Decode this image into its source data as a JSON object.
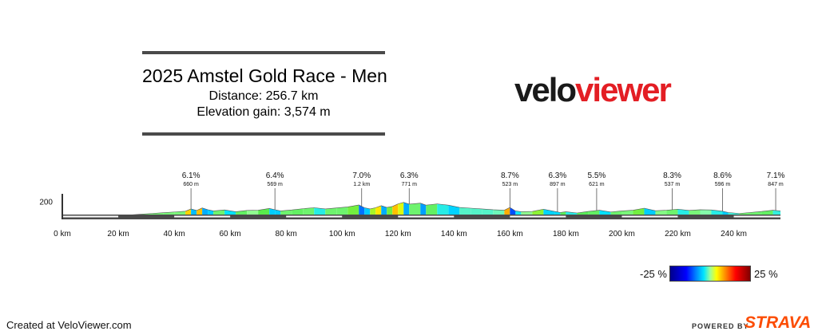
{
  "header": {
    "title": "2025 Amstel Gold Race - Men",
    "distance": "Distance: 256.7 km",
    "elevation": "Elevation gain: 3,574 m"
  },
  "brand": {
    "velo": "velo",
    "viewer": "viewer",
    "velo_color": "#1a1a1a",
    "viewer_color": "#e31e24"
  },
  "chart_data": {
    "type": "area",
    "x_unit": "km",
    "xlim": [
      0,
      256.7
    ],
    "xticks": [
      0,
      20,
      40,
      60,
      80,
      100,
      120,
      140,
      160,
      180,
      200,
      220,
      240
    ],
    "xtick_labels": [
      "0 km",
      "20 km",
      "40 km",
      "60 km",
      "80 km",
      "100 km",
      "120 km",
      "140 km",
      "160 km",
      "180 km",
      "200 km",
      "220 km",
      "240 km"
    ],
    "ylim": [
      70,
      260
    ],
    "yticks": [
      200
    ],
    "ytick_labels": [
      "200"
    ],
    "profile": [
      [
        0,
        80
      ],
      [
        4,
        78
      ],
      [
        10,
        80
      ],
      [
        14,
        88
      ],
      [
        18,
        86
      ],
      [
        24,
        92
      ],
      [
        28,
        98
      ],
      [
        32,
        104
      ],
      [
        36,
        110
      ],
      [
        40,
        116
      ],
      [
        44,
        122
      ],
      [
        46,
        140
      ],
      [
        48,
        128
      ],
      [
        50,
        148
      ],
      [
        52,
        134
      ],
      [
        54,
        124
      ],
      [
        58,
        132
      ],
      [
        62,
        118
      ],
      [
        66,
        128
      ],
      [
        70,
        130
      ],
      [
        74,
        144
      ],
      [
        76,
        134
      ],
      [
        78,
        124
      ],
      [
        82,
        132
      ],
      [
        86,
        142
      ],
      [
        90,
        150
      ],
      [
        94,
        140
      ],
      [
        98,
        148
      ],
      [
        102,
        156
      ],
      [
        106,
        172
      ],
      [
        108,
        150
      ],
      [
        110,
        140
      ],
      [
        112,
        150
      ],
      [
        114,
        166
      ],
      [
        116,
        152
      ],
      [
        118,
        160
      ],
      [
        120,
        180
      ],
      [
        122,
        192
      ],
      [
        124,
        178
      ],
      [
        128,
        186
      ],
      [
        130,
        170
      ],
      [
        134,
        180
      ],
      [
        138,
        170
      ],
      [
        142,
        152
      ],
      [
        146,
        146
      ],
      [
        150,
        140
      ],
      [
        154,
        134
      ],
      [
        158,
        130
      ],
      [
        160,
        152
      ],
      [
        162,
        124
      ],
      [
        164,
        118
      ],
      [
        168,
        120
      ],
      [
        172,
        138
      ],
      [
        176,
        120
      ],
      [
        178,
        112
      ],
      [
        180,
        118
      ],
      [
        184,
        108
      ],
      [
        188,
        120
      ],
      [
        192,
        130
      ],
      [
        196,
        116
      ],
      [
        200,
        124
      ],
      [
        204,
        130
      ],
      [
        208,
        146
      ],
      [
        212,
        126
      ],
      [
        216,
        130
      ],
      [
        220,
        138
      ],
      [
        224,
        128
      ],
      [
        228,
        134
      ],
      [
        232,
        132
      ],
      [
        236,
        122
      ],
      [
        238,
        112
      ],
      [
        242,
        104
      ],
      [
        246,
        112
      ],
      [
        250,
        120
      ],
      [
        254,
        130
      ],
      [
        256.7,
        124
      ]
    ],
    "climbs": [
      {
        "km": 46,
        "grade": "6.1%",
        "length": "660 m"
      },
      {
        "km": 76,
        "grade": "6.4%",
        "length": "569 m"
      },
      {
        "km": 107,
        "grade": "7.0%",
        "length": "1.2 km"
      },
      {
        "km": 124,
        "grade": "6.3%",
        "length": "771 m"
      },
      {
        "km": 160,
        "grade": "8.7%",
        "length": "523 m"
      },
      {
        "km": 177,
        "grade": "6.3%",
        "length": "897 m"
      },
      {
        "km": 191,
        "grade": "5.5%",
        "length": "621 m"
      },
      {
        "km": 218,
        "grade": "8.3%",
        "length": "537 m"
      },
      {
        "km": 236,
        "grade": "8.6%",
        "length": "596 m"
      },
      {
        "km": 255,
        "grade": "7.1%",
        "length": "847 m"
      }
    ]
  },
  "legend": {
    "min": "-25 %",
    "max": "25 %"
  },
  "footer": {
    "credit": "Created at VeloViewer.com",
    "powered": "POWERED BY",
    "strava": "STRAVA"
  }
}
